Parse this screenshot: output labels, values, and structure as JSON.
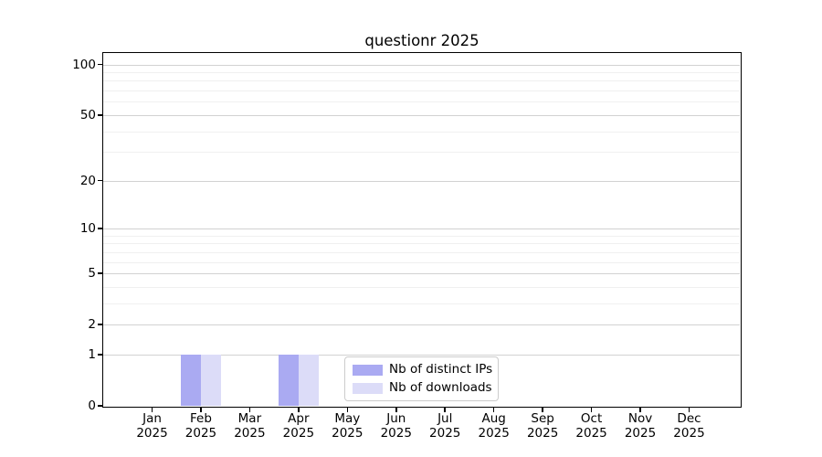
{
  "figure": {
    "title": "questionr 2025"
  },
  "chart_data": {
    "type": "bar",
    "title": "questionr 2025",
    "x_months": [
      "Jan",
      "Feb",
      "Mar",
      "Apr",
      "May",
      "Jun",
      "Jul",
      "Aug",
      "Sep",
      "Oct",
      "Nov",
      "Dec"
    ],
    "x_year": "2025",
    "series": [
      {
        "name": "Nb of distinct IPs",
        "color": "#aaaaf2",
        "values": [
          0,
          1,
          0,
          1,
          0,
          0,
          0,
          0,
          0,
          0,
          0,
          0
        ]
      },
      {
        "name": "Nb of downloads",
        "color": "#dcdcf8",
        "values": [
          0,
          1,
          0,
          1,
          0,
          0,
          0,
          0,
          0,
          0,
          0,
          0
        ]
      }
    ],
    "y_scale": "log1p",
    "y_major_ticks": [
      0,
      1,
      2,
      5,
      10,
      20,
      50,
      100
    ],
    "y_minor_gridlines": [
      3,
      4,
      6,
      7,
      8,
      9,
      30,
      40,
      60,
      70,
      80,
      90
    ],
    "ylim": [
      0,
      117
    ],
    "grid": "horizontal",
    "legend_position": "inside-bottom-center"
  },
  "colors": {
    "distinct_ips": "#aaaaf2",
    "downloads": "#dcdcf8",
    "grid_major": "#d2d2d2",
    "grid_minor": "#f0f0f0",
    "axis": "#000000",
    "background": "#ffffff",
    "legend_border": "#cccccc"
  }
}
